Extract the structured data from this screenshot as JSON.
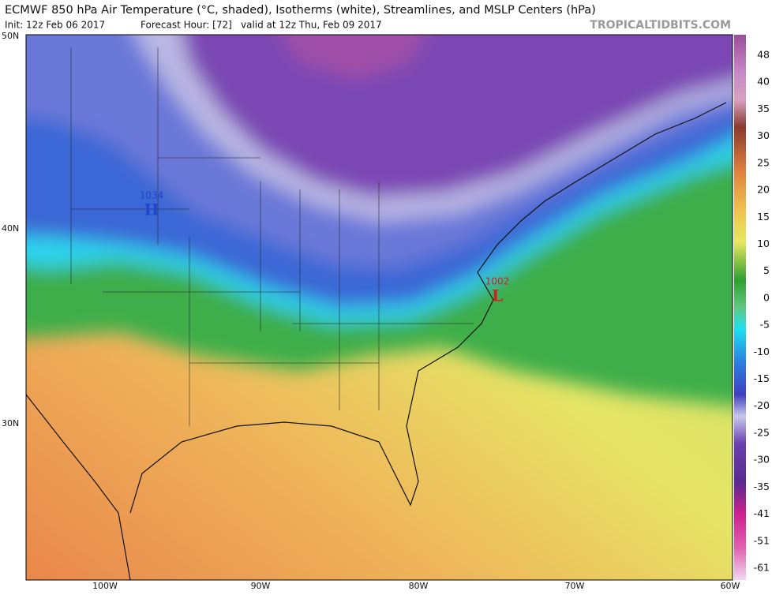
{
  "header": {
    "title": "ECMWF 850 hPa Air Temperature (°C, shaded), Isotherms (white), Streamlines, and MSLP Centers (hPa)",
    "init": "Init: 12z Feb 06 2017",
    "forecast_hour": "Forecast Hour: [72]",
    "valid": "valid at 12z Thu, Feb 09 2017",
    "site": "TROPICALTIDBITS.COM"
  },
  "map": {
    "lat_labels": [
      "50N",
      "40N",
      "30N"
    ],
    "lon_labels": [
      "100W",
      "90W",
      "80W",
      "70W",
      "60W"
    ],
    "pressure_centers": [
      {
        "value": "1034",
        "letter": "H"
      },
      {
        "value": "1002",
        "letter": "L"
      }
    ]
  },
  "colorbar": {
    "ticks": [
      48,
      40,
      35,
      30,
      25,
      20,
      15,
      10,
      5,
      0,
      -5,
      -10,
      -15,
      -20,
      -25,
      -30,
      -35,
      -41,
      -51,
      -61
    ]
  }
}
